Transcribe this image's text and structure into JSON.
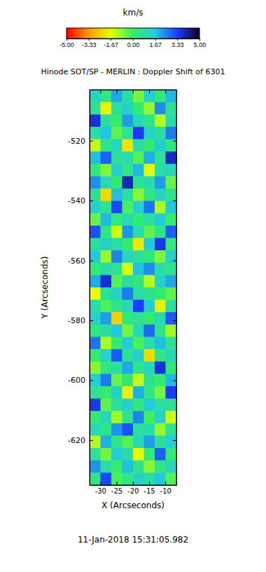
{
  "chart_data": {
    "type": "heatmap",
    "title": "Hinode SOT/SP - MERLIN : Doppler Shift of 6301",
    "x_label": "X (Arcseconds)",
    "y_label": "Y (Arcseconds)",
    "annotation": "11-Jan-2018 15:31:05.982",
    "xlim": [
      -33.3,
      -6.6
    ],
    "ylim": [
      -635,
      -503
    ],
    "xticks": [
      -30,
      -25,
      -20,
      -15,
      -10
    ],
    "yticks": [
      -520,
      -540,
      -560,
      -580,
      -600,
      -620
    ],
    "colorbar": {
      "label": "km/s",
      "range": [
        -5,
        5
      ],
      "ticks": [
        {
          "value": -5,
          "label": "-5.00"
        },
        {
          "value": -3.33,
          "label": "-3.33"
        },
        {
          "value": -1.67,
          "label": "-1.67"
        },
        {
          "value": 0,
          "label": "0.00"
        },
        {
          "value": 1.67,
          "label": "1.67"
        },
        {
          "value": 3.33,
          "label": "3.33"
        },
        {
          "value": 5,
          "label": "5.00"
        }
      ]
    },
    "z": [
      [
        1.2,
        0.4,
        2.1,
        0.8,
        -0.6,
        1.5,
        0.3,
        1.9
      ],
      [
        0.6,
        -1.8,
        0.9,
        1.4,
        0.2,
        -0.9,
        2.4,
        0.7
      ],
      [
        3.6,
        0.8,
        0.1,
        2.2,
        1.1,
        0.5,
        -1.2,
        1.0
      ],
      [
        0.9,
        1.7,
        -0.4,
        0.6,
        3.4,
        1.3,
        0.8,
        2.6
      ],
      [
        -1.3,
        0.5,
        1.2,
        -2.1,
        0.9,
        0.2,
        1.6,
        0.4
      ],
      [
        1.8,
        2.9,
        0.7,
        1.0,
        -0.3,
        2.0,
        0.6,
        3.8
      ],
      [
        0.3,
        -0.7,
        1.5,
        0.4,
        1.9,
        -1.6,
        0.9,
        1.2
      ],
      [
        2.4,
        1.1,
        0.2,
        3.9,
        0.6,
        1.0,
        2.2,
        -0.5
      ],
      [
        0.7,
        -2.3,
        1.8,
        0.9,
        -0.8,
        0.4,
        1.3,
        0.6
      ],
      [
        1.4,
        0.6,
        3.2,
        -0.2,
        1.5,
        2.7,
        -1.1,
        1.7
      ],
      [
        -0.5,
        1.9,
        0.3,
        1.1,
        0.2,
        0.8,
        1.6,
        0.1
      ],
      [
        3.1,
        0.4,
        -1.4,
        2.3,
        1.0,
        -0.4,
        0.5,
        2.9
      ],
      [
        0.8,
        1.3,
        0.9,
        0.1,
        -2.0,
        1.7,
        3.5,
        0.3
      ],
      [
        1.6,
        -0.9,
        2.5,
        1.2,
        0.7,
        0.3,
        -0.7,
        1.4
      ],
      [
        0.2,
        1.0,
        0.6,
        -1.5,
        1.8,
        2.4,
        0.9,
        0.5
      ],
      [
        2.0,
        3.7,
        -0.3,
        0.8,
        0.4,
        -1.2,
        1.3,
        2.1
      ],
      [
        -1.7,
        0.7,
        1.4,
        2.6,
        0.9,
        0.6,
        0.2,
        -0.4
      ],
      [
        0.9,
        -0.2,
        0.5,
        1.1,
        3.3,
        1.5,
        -1.9,
        0.8
      ],
      [
        1.3,
        2.2,
        -2.4,
        0.3,
        0.6,
        0.1,
        1.0,
        3.0
      ],
      [
        0.4,
        0.8,
        1.7,
        -0.6,
        1.2,
        2.8,
        0.5,
        -1.0
      ],
      [
        2.7,
        -1.1,
        0.2,
        1.6,
        -0.2,
        0.9,
        1.8,
        0.6
      ],
      [
        0.1,
        1.4,
        3.0,
        0.7,
        1.5,
        -2.2,
        0.4,
        1.1
      ],
      [
        -0.8,
        0.3,
        0.9,
        2.1,
        0.5,
        1.2,
        3.6,
        0.2
      ],
      [
        1.5,
        2.6,
        -0.5,
        0.2,
        -1.3,
        0.7,
        0.1,
        1.9
      ],
      [
        0.6,
        0.1,
        1.3,
        -1.9,
        2.0,
        0.4,
        -0.6,
        3.4
      ],
      [
        3.5,
        -0.4,
        0.8,
        1.4,
        0.3,
        1.6,
        0.9,
        0.7
      ],
      [
        0.2,
        1.2,
        -1.0,
        0.5,
        2.5,
        -0.1,
        1.4,
        -1.4
      ],
      [
        1.1,
        0.5,
        2.3,
        3.1,
        0.8,
        1.0,
        -0.9,
        0.6
      ],
      [
        -1.2,
        2.0,
        0.4,
        -0.3,
        1.1,
        2.2,
        0.7,
        1.5
      ],
      [
        0.7,
        -0.6,
        1.6,
        0.9,
        -1.7,
        0.3,
        2.9,
        0.2
      ],
      [
        2.3,
        1.0,
        0.1,
        1.8,
        0.6,
        -0.8,
        0.4,
        1.2
      ],
      [
        0.5,
        3.2,
        -0.2,
        0.4,
        1.3,
        0.9,
        1.7,
        -0.3
      ]
    ]
  }
}
